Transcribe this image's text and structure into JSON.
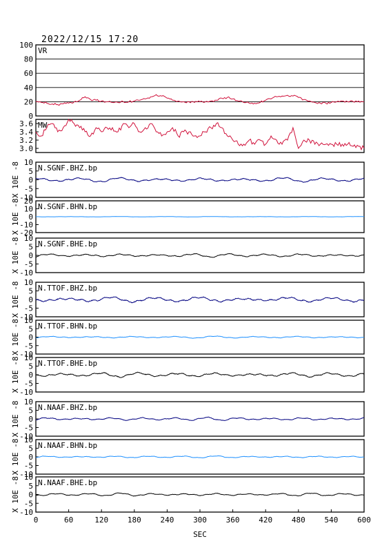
{
  "title": "2022/12/15  17:20",
  "xlabel": "SEC",
  "ylabel_multiplier": "X 10E -8",
  "colors": {
    "frame": "#000000",
    "red": "#d0103a",
    "navy": "#000080",
    "blue": "#1e90ff",
    "black": "#000000"
  },
  "chart_data": [
    {
      "type": "line",
      "name": "VR",
      "ylim": [
        0,
        100
      ],
      "yticks": [
        0,
        20,
        40,
        60,
        80,
        100
      ],
      "tick_labels": [
        "0",
        "20",
        "40",
        "60",
        "80",
        "100"
      ],
      "grid": true,
      "x": [
        0,
        10,
        20,
        30,
        40,
        50,
        60,
        70,
        80,
        90,
        100,
        110,
        120,
        130,
        140,
        150,
        160,
        170,
        180,
        190,
        200,
        210,
        220,
        230,
        240,
        250,
        260,
        270,
        280,
        290,
        300,
        310,
        320,
        330,
        340,
        350,
        360,
        370,
        380,
        390,
        400,
        410,
        420,
        430,
        440,
        450,
        460,
        470,
        480,
        490,
        500,
        510,
        520,
        530,
        540,
        550,
        560,
        570,
        580,
        590,
        600
      ],
      "values": [
        20,
        19,
        18,
        17,
        16,
        17,
        18,
        20,
        22,
        27,
        23,
        22,
        21,
        20,
        19,
        19,
        20,
        20,
        21,
        22,
        24,
        27,
        30,
        28,
        25,
        22,
        21,
        20,
        20,
        19,
        20,
        20,
        21,
        22,
        25,
        26,
        24,
        21,
        19,
        18,
        18,
        19,
        22,
        24,
        27,
        28,
        29,
        28,
        26,
        23,
        21,
        19,
        18,
        18,
        19,
        20,
        21,
        20,
        20,
        21,
        20
      ]
    },
    {
      "type": "line",
      "name": "MW",
      "ylim": [
        2.9,
        3.7
      ],
      "yticks": [
        3.0,
        3.2,
        3.4,
        3.6
      ],
      "tick_labels": [
        "3.0",
        "3.2",
        "3.4",
        "3.6"
      ],
      "grid": false,
      "x": [
        0,
        10,
        20,
        30,
        40,
        50,
        60,
        70,
        80,
        90,
        100,
        110,
        120,
        130,
        140,
        150,
        160,
        170,
        180,
        190,
        200,
        210,
        220,
        230,
        240,
        250,
        260,
        270,
        280,
        290,
        300,
        310,
        320,
        330,
        340,
        350,
        360,
        370,
        380,
        390,
        400,
        410,
        420,
        430,
        440,
        450,
        460,
        470,
        480,
        490,
        500,
        510,
        520,
        530,
        540,
        550,
        560,
        570,
        580,
        590,
        600
      ],
      "values": [
        3.4,
        3.3,
        3.5,
        3.6,
        3.4,
        3.5,
        3.7,
        3.6,
        3.5,
        3.4,
        3.3,
        3.5,
        3.4,
        3.5,
        3.5,
        3.4,
        3.6,
        3.5,
        3.6,
        3.4,
        3.5,
        3.6,
        3.4,
        3.3,
        3.4,
        3.5,
        3.3,
        3.4,
        3.4,
        3.3,
        3.3,
        3.4,
        3.5,
        3.6,
        3.5,
        3.3,
        3.2,
        3.1,
        3.1,
        3.2,
        3.1,
        3.2,
        3.1,
        3.3,
        3.2,
        3.1,
        3.2,
        3.5,
        3.0,
        3.2,
        3.2,
        3.1,
        3.1,
        3.1,
        3.1,
        3.1,
        3.1,
        3.1,
        3.05,
        3.05,
        3.0
      ]
    },
    {
      "type": "line",
      "name": "N.SGNF.BHZ.bp",
      "ylim": [
        -10,
        10
      ],
      "tick_labels": [
        "10",
        "5",
        "0",
        "-5",
        "-10"
      ],
      "color": "navy",
      "amp": 1.2,
      "freq": 0.7,
      "seed": 3
    },
    {
      "type": "line",
      "name": "N.SGNF.BHN.bp",
      "ylim": [
        -20,
        20
      ],
      "tick_labels": [
        "20",
        "10",
        "0",
        "-10",
        "-20"
      ],
      "color": "blue",
      "amp": 0.3,
      "freq": 0.6,
      "seed": 7
    },
    {
      "type": "line",
      "name": "N.SGNF.BHE.bp",
      "ylim": [
        -10,
        10
      ],
      "tick_labels": [
        "10",
        "5",
        "0",
        "-5",
        "-10"
      ],
      "color": "black",
      "amp": 1.0,
      "freq": 0.8,
      "seed": 11
    },
    {
      "type": "line",
      "name": "N.TTOF.BHZ.bp",
      "ylim": [
        -10,
        10
      ],
      "tick_labels": [
        "10",
        "5",
        "0",
        "-5",
        "-10"
      ],
      "color": "navy",
      "amp": 1.6,
      "freq": 0.65,
      "seed": 13
    },
    {
      "type": "line",
      "name": "N.TTOF.BHN.bp",
      "ylim": [
        -10,
        10
      ],
      "tick_labels": [
        "10",
        "5",
        "0",
        "-5",
        "-10"
      ],
      "color": "blue",
      "amp": 0.6,
      "freq": 0.7,
      "seed": 17
    },
    {
      "type": "line",
      "name": "N.TTOF.BHE.bp",
      "ylim": [
        -10,
        10
      ],
      "tick_labels": [
        "10",
        "5",
        "0",
        "-5",
        "-10"
      ],
      "color": "black",
      "amp": 1.3,
      "freq": 0.75,
      "seed": 19
    },
    {
      "type": "line",
      "name": "N.NAAF.BHZ.bp",
      "ylim": [
        -10,
        10
      ],
      "tick_labels": [
        "10",
        "5",
        "0",
        "-5",
        "-10"
      ],
      "color": "navy",
      "amp": 0.9,
      "freq": 0.9,
      "seed": 23
    },
    {
      "type": "line",
      "name": "N.NAAF.BHN.bp",
      "ylim": [
        -10,
        10
      ],
      "tick_labels": [
        "10",
        "5",
        "0",
        "-5",
        "-10"
      ],
      "color": "blue",
      "amp": 0.6,
      "freq": 0.85,
      "seed": 29
    },
    {
      "type": "line",
      "name": "N.NAAF.BHE.bp",
      "ylim": [
        -10,
        10
      ],
      "tick_labels": [
        "10",
        "5",
        "0",
        "-5",
        "-10"
      ],
      "color": "black",
      "amp": 0.8,
      "freq": 0.9,
      "seed": 31
    }
  ],
  "x_axis": {
    "range": [
      0,
      600
    ],
    "ticks": [
      "0",
      "60",
      "120",
      "180",
      "240",
      "300",
      "360",
      "420",
      "480",
      "540",
      "600"
    ]
  }
}
